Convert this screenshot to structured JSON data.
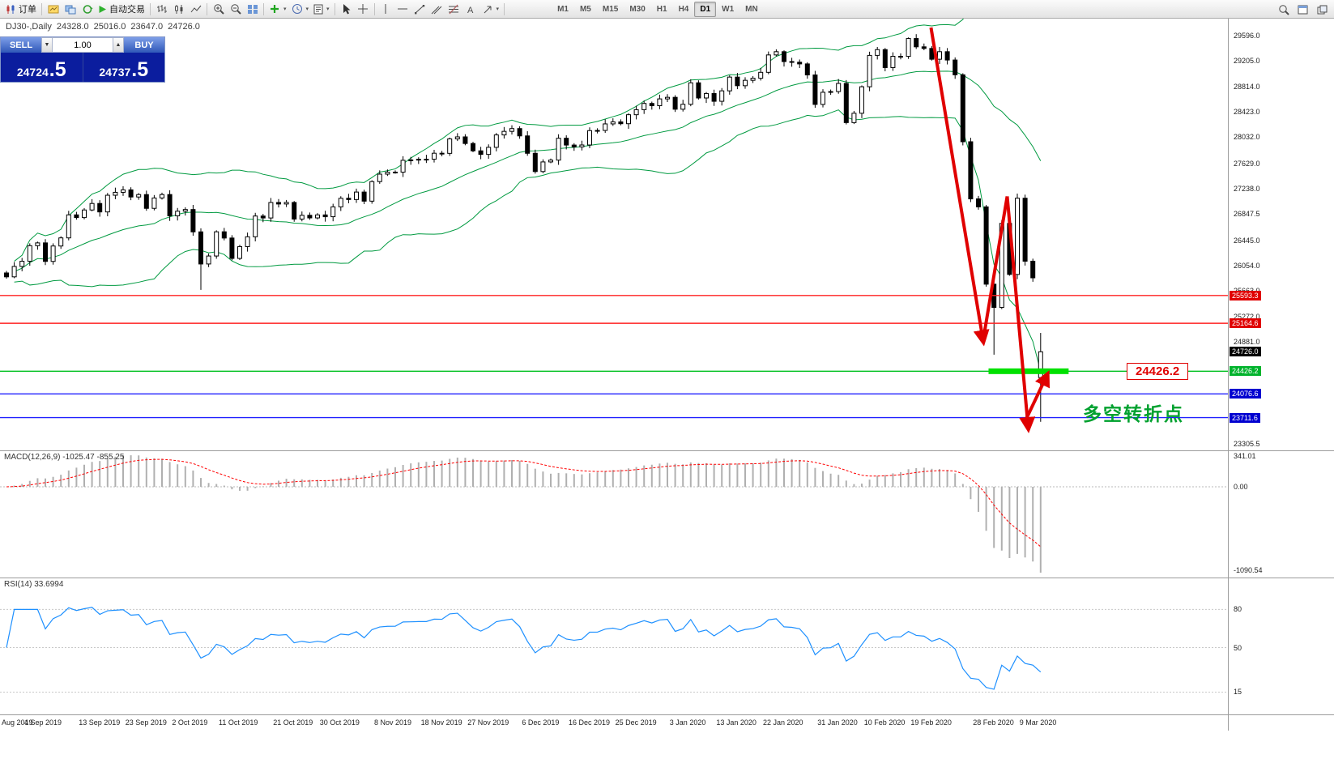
{
  "toolbar": {
    "order_button": "订单",
    "auto_trading": "自动交易",
    "timeframes": [
      "M1",
      "M5",
      "M15",
      "M30",
      "H1",
      "H4",
      "D1",
      "W1",
      "MN"
    ],
    "active_timeframe": "D1"
  },
  "one_click": {
    "sell_label": "SELL",
    "buy_label": "BUY",
    "volume": "1.00",
    "sell_price": {
      "main": "24724",
      "big": ".5"
    },
    "buy_price": {
      "main": "24737",
      "big": ".5"
    }
  },
  "chart": {
    "symbol_line": "DJ30-,Daily",
    "open": "24328.0",
    "high": "25016.0",
    "low": "23647.0",
    "close": "24726.0"
  },
  "annotations": {
    "price_callout": "24426.2",
    "note_cn": "多空转折点"
  },
  "indicators": {
    "macd_label": "MACD(12,26,9) -1025.47 -855.25",
    "macd_scale_top": "341.01",
    "macd_scale_zero": "0.00",
    "macd_scale_bottom": "-1090.54",
    "rsi_label": "RSI(14) 33.6994",
    "rsi_levels": [
      "80",
      "50",
      "15"
    ]
  },
  "price_scale": {
    "labels": [
      "29596.0",
      "29205.0",
      "28814.0",
      "28423.0",
      "28032.0",
      "27629.0",
      "27238.0",
      "26847.5",
      "26445.0",
      "26054.0",
      "25663.0",
      "25272.0",
      "24881.0",
      "23305.5"
    ],
    "current": {
      "text": "24726.0",
      "value": 24726.0,
      "color": "#000000"
    },
    "level_badges": [
      {
        "text": "25593.3",
        "value": 25593.3,
        "color": "#e00000"
      },
      {
        "text": "25164.6",
        "value": 25164.6,
        "color": "#e00000"
      },
      {
        "text": "24426.2",
        "value": 24426.2,
        "color": "#00b32c"
      },
      {
        "text": "24076.6",
        "value": 24076.6,
        "color": "#0000d0"
      },
      {
        "text": "23711.6",
        "value": 23711.6,
        "color": "#0000d0"
      }
    ]
  },
  "chart_data": {
    "type": "candlestick",
    "symbol": "DJ30-",
    "period": "Daily",
    "price_range": [
      23220,
      29770
    ],
    "closes": [
      25880,
      26040,
      26120,
      26360,
      26403,
      26118,
      26355,
      26480,
      26835,
      26793,
      26910,
      27010,
      26880,
      27137,
      27182,
      27220,
      27110,
      27147,
      26935,
      27095,
      27148,
      26820,
      26891,
      26917,
      26573,
      26078,
      26201,
      26574,
      26478,
      26164,
      26346,
      26497,
      26817,
      26787,
      27025,
      27002,
      27026,
      26770,
      26828,
      26788,
      26834,
      26806,
      26958,
      27090,
      27071,
      27186,
      27046,
      27347,
      27462,
      27492,
      27493,
      27675,
      27681,
      27691,
      27692,
      27784,
      27782,
      28005,
      28036,
      27934,
      27821,
      27766,
      27875,
      28066,
      28121,
      28164,
      28051,
      27783,
      27502,
      27650,
      27678,
      28015,
      27910,
      27882,
      27911,
      28132,
      28135,
      28236,
      28267,
      28239,
      28377,
      28455,
      28551,
      28516,
      28621,
      28645,
      28462,
      28538,
      28869,
      28635,
      28704,
      28584,
      28745,
      28957,
      28824,
      28907,
      28939,
      29030,
      29298,
      29348,
      29196,
      29186,
      29160,
      28990,
      28536,
      28723,
      28734,
      28859,
      28256,
      28400,
      28808,
      29291,
      29380,
      29103,
      29277,
      29276,
      29551,
      29423,
      29398,
      29232,
      29348,
      29220,
      28992,
      27961,
      27081,
      26958,
      25767,
      25409,
      26703,
      25917,
      27091,
      26121,
      25865,
      24726
    ],
    "last_bar": {
      "open": 24328,
      "high": 25016,
      "low": 23647,
      "close": 24726
    },
    "wick_overrides": {
      "25": {
        "low": 25680
      },
      "116": {
        "high": 29568
      },
      "127": {
        "low": 24681
      }
    },
    "hlines": [
      {
        "value": 25593.3,
        "color": "#ff2020",
        "width": 1.4
      },
      {
        "value": 25164.6,
        "color": "#ff2020",
        "width": 1.4
      },
      {
        "value": 24426.2,
        "color": "#00c020",
        "width": 1.4
      },
      {
        "value": 24076.6,
        "color": "#2020ff",
        "width": 1.4
      },
      {
        "value": 23711.6,
        "color": "#2020ff",
        "width": 1.4
      }
    ],
    "green_zone": {
      "from_i": 126.3,
      "to_i": 136.6,
      "price": 24426.2
    },
    "arrows": [
      {
        "from": {
          "i": 118.9,
          "p": 29720
        },
        "to": {
          "i": 125.6,
          "p": 24900
        },
        "head": true
      },
      {
        "from": {
          "i": 125.6,
          "p": 24900
        },
        "to": {
          "i": 128.7,
          "p": 27120
        },
        "head": false
      },
      {
        "from": {
          "i": 128.7,
          "p": 27120
        },
        "to": {
          "i": 131.4,
          "p": 23560
        },
        "head": true
      },
      {
        "from": {
          "i": 131.1,
          "p": 23680
        },
        "to": {
          "i": 133.8,
          "p": 24360
        },
        "head": true
      }
    ],
    "x_labels": [
      {
        "i": 0,
        "label": "Aug 2019"
      },
      {
        "i": 5,
        "label": "4 Sep 2019"
      },
      {
        "i": 12,
        "label": "13 Sep 2019"
      },
      {
        "i": 18,
        "label": "23 Sep 2019"
      },
      {
        "i": 24,
        "label": "2 Oct 2019"
      },
      {
        "i": 30,
        "label": "11 Oct 2019"
      },
      {
        "i": 37,
        "label": "21 Oct 2019"
      },
      {
        "i": 43,
        "label": "30 Oct 2019"
      },
      {
        "i": 50,
        "label": "8 Nov 2019"
      },
      {
        "i": 56,
        "label": "18 Nov 2019"
      },
      {
        "i": 62,
        "label": "27 Nov 2019"
      },
      {
        "i": 69,
        "label": "6 Dec 2019"
      },
      {
        "i": 75,
        "label": "16 Dec 2019"
      },
      {
        "i": 81,
        "label": "25 Dec 2019"
      },
      {
        "i": 88,
        "label": "3 Jan 2020"
      },
      {
        "i": 94,
        "label": "13 Jan 2020"
      },
      {
        "i": 100,
        "label": "22 Jan 2020"
      },
      {
        "i": 107,
        "label": "31 Jan 2020"
      },
      {
        "i": 113,
        "label": "10 Feb 2020"
      },
      {
        "i": 119,
        "label": "19 Feb 2020"
      },
      {
        "i": 127,
        "label": "28 Feb 2020"
      },
      {
        "i": 133,
        "label": "9 Mar 2020"
      }
    ],
    "bollinger": {
      "period": 20,
      "deviation": 2,
      "color": "#009a40"
    },
    "macd": {
      "fast": 12,
      "slow": 26,
      "signal": 9,
      "hist_color": "#b0b0b0",
      "signal_color": "#ff0000"
    },
    "rsi": {
      "period": 14,
      "color": "#1E90FF",
      "levels": [
        80,
        50,
        15
      ]
    }
  }
}
